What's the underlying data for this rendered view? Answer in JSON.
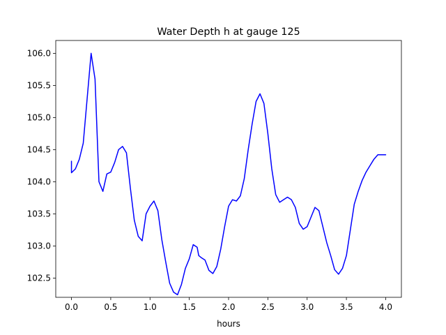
{
  "chart_data": {
    "type": "line",
    "title": "Water Depth h at gauge 125",
    "xlabel": "hours",
    "ylabel": "",
    "xlim": [
      -0.2,
      4.2
    ],
    "ylim": [
      102.2,
      106.2
    ],
    "x_ticks": [
      0.0,
      0.5,
      1.0,
      1.5,
      2.0,
      2.5,
      3.0,
      3.5,
      4.0
    ],
    "x_tick_labels": [
      "0.0",
      "0.5",
      "1.0",
      "1.5",
      "2.0",
      "2.5",
      "3.0",
      "3.5",
      "4.0"
    ],
    "y_ticks": [
      102.5,
      103.0,
      103.5,
      104.0,
      104.5,
      105.0,
      105.5,
      106.0
    ],
    "y_tick_labels": [
      "102.5",
      "103.0",
      "103.5",
      "104.0",
      "104.5",
      "105.0",
      "105.5",
      "106.0"
    ],
    "grid": false,
    "series": [
      {
        "color": "#0000ff",
        "x": [
          0.0,
          0.0,
          0.05,
          0.1,
          0.15,
          0.2,
          0.25,
          0.3,
          0.35,
          0.4,
          0.45,
          0.5,
          0.55,
          0.6,
          0.65,
          0.7,
          0.75,
          0.8,
          0.85,
          0.9,
          0.95,
          1.0,
          1.05,
          1.1,
          1.15,
          1.2,
          1.25,
          1.3,
          1.35,
          1.4,
          1.45,
          1.5,
          1.55,
          1.6,
          1.62,
          1.65,
          1.7,
          1.75,
          1.8,
          1.85,
          1.9,
          1.95,
          2.0,
          2.05,
          2.1,
          2.15,
          2.2,
          2.25,
          2.3,
          2.35,
          2.4,
          2.45,
          2.5,
          2.55,
          2.6,
          2.65,
          2.7,
          2.75,
          2.8,
          2.85,
          2.9,
          2.95,
          3.0,
          3.05,
          3.1,
          3.15,
          3.2,
          3.25,
          3.3,
          3.35,
          3.4,
          3.45,
          3.5,
          3.55,
          3.6,
          3.65,
          3.7,
          3.75,
          3.8,
          3.85,
          3.9,
          3.95,
          4.0
        ],
        "y": [
          104.32,
          104.14,
          104.2,
          104.35,
          104.6,
          105.3,
          106.0,
          105.6,
          104.0,
          103.85,
          104.12,
          104.15,
          104.3,
          104.5,
          104.55,
          104.45,
          103.9,
          103.4,
          103.15,
          103.08,
          103.5,
          103.62,
          103.7,
          103.55,
          103.1,
          102.75,
          102.42,
          102.28,
          102.24,
          102.4,
          102.65,
          102.8,
          103.02,
          102.98,
          102.85,
          102.82,
          102.78,
          102.62,
          102.57,
          102.68,
          102.95,
          103.3,
          103.62,
          103.72,
          103.7,
          103.78,
          104.05,
          104.5,
          104.9,
          105.25,
          105.37,
          105.22,
          104.75,
          104.2,
          103.8,
          103.68,
          103.72,
          103.76,
          103.72,
          103.6,
          103.35,
          103.26,
          103.3,
          103.45,
          103.6,
          103.55,
          103.3,
          103.05,
          102.85,
          102.63,
          102.56,
          102.65,
          102.85,
          103.25,
          103.65,
          103.85,
          104.02,
          104.15,
          104.25,
          104.35,
          104.42,
          104.42,
          104.42
        ]
      }
    ]
  }
}
